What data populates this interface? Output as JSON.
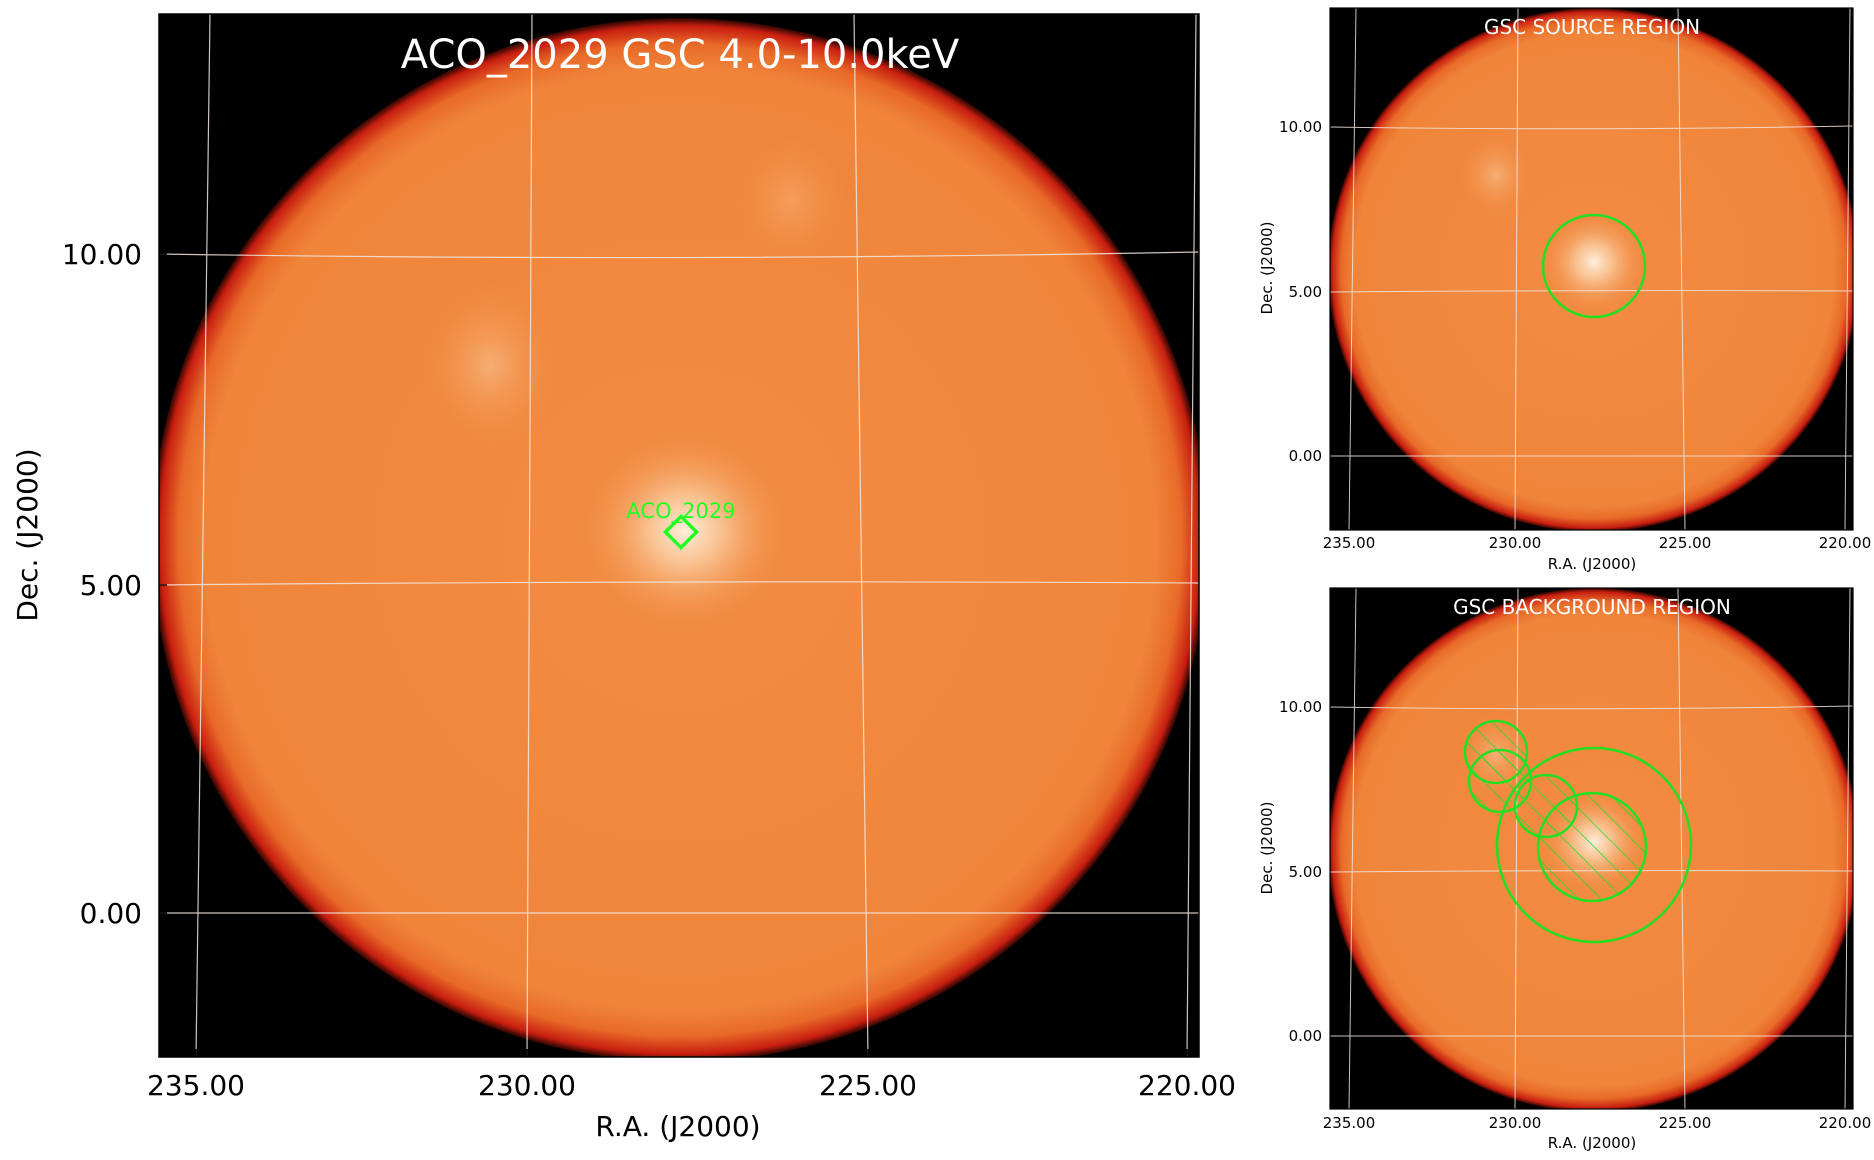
{
  "main": {
    "title": "ACO_2029 GSC 4.0-10.0keV",
    "marker_label": "ACO_2029",
    "xlabel": "R.A. (J2000)",
    "ylabel": "Dec. (J2000)",
    "x_ticks": [
      "235.00",
      "230.00",
      "225.00",
      "220.00"
    ],
    "y_ticks": [
      "10.00",
      "5.00",
      "0.00"
    ]
  },
  "source_panel": {
    "title": "GSC SOURCE REGION",
    "xlabel": "R.A. (J2000)",
    "ylabel": "Dec. (J2000)",
    "x_ticks": [
      "235.00",
      "230.00",
      "225.00",
      "220.00"
    ],
    "y_ticks": [
      "10.00",
      "5.00",
      "0.00"
    ]
  },
  "background_panel": {
    "title": "GSC BACKGROUND REGION",
    "xlabel": "R.A. (J2000)",
    "ylabel": "Dec. (J2000)",
    "x_ticks": [
      "235.00",
      "230.00",
      "225.00",
      "220.00"
    ],
    "y_ticks": [
      "10.00",
      "5.00",
      "0.00"
    ]
  },
  "colors": {
    "field": "#f08a3e",
    "edge": "#c81e10",
    "background": "#000000",
    "region": "#22e022",
    "grid": "#f2e8e0"
  }
}
